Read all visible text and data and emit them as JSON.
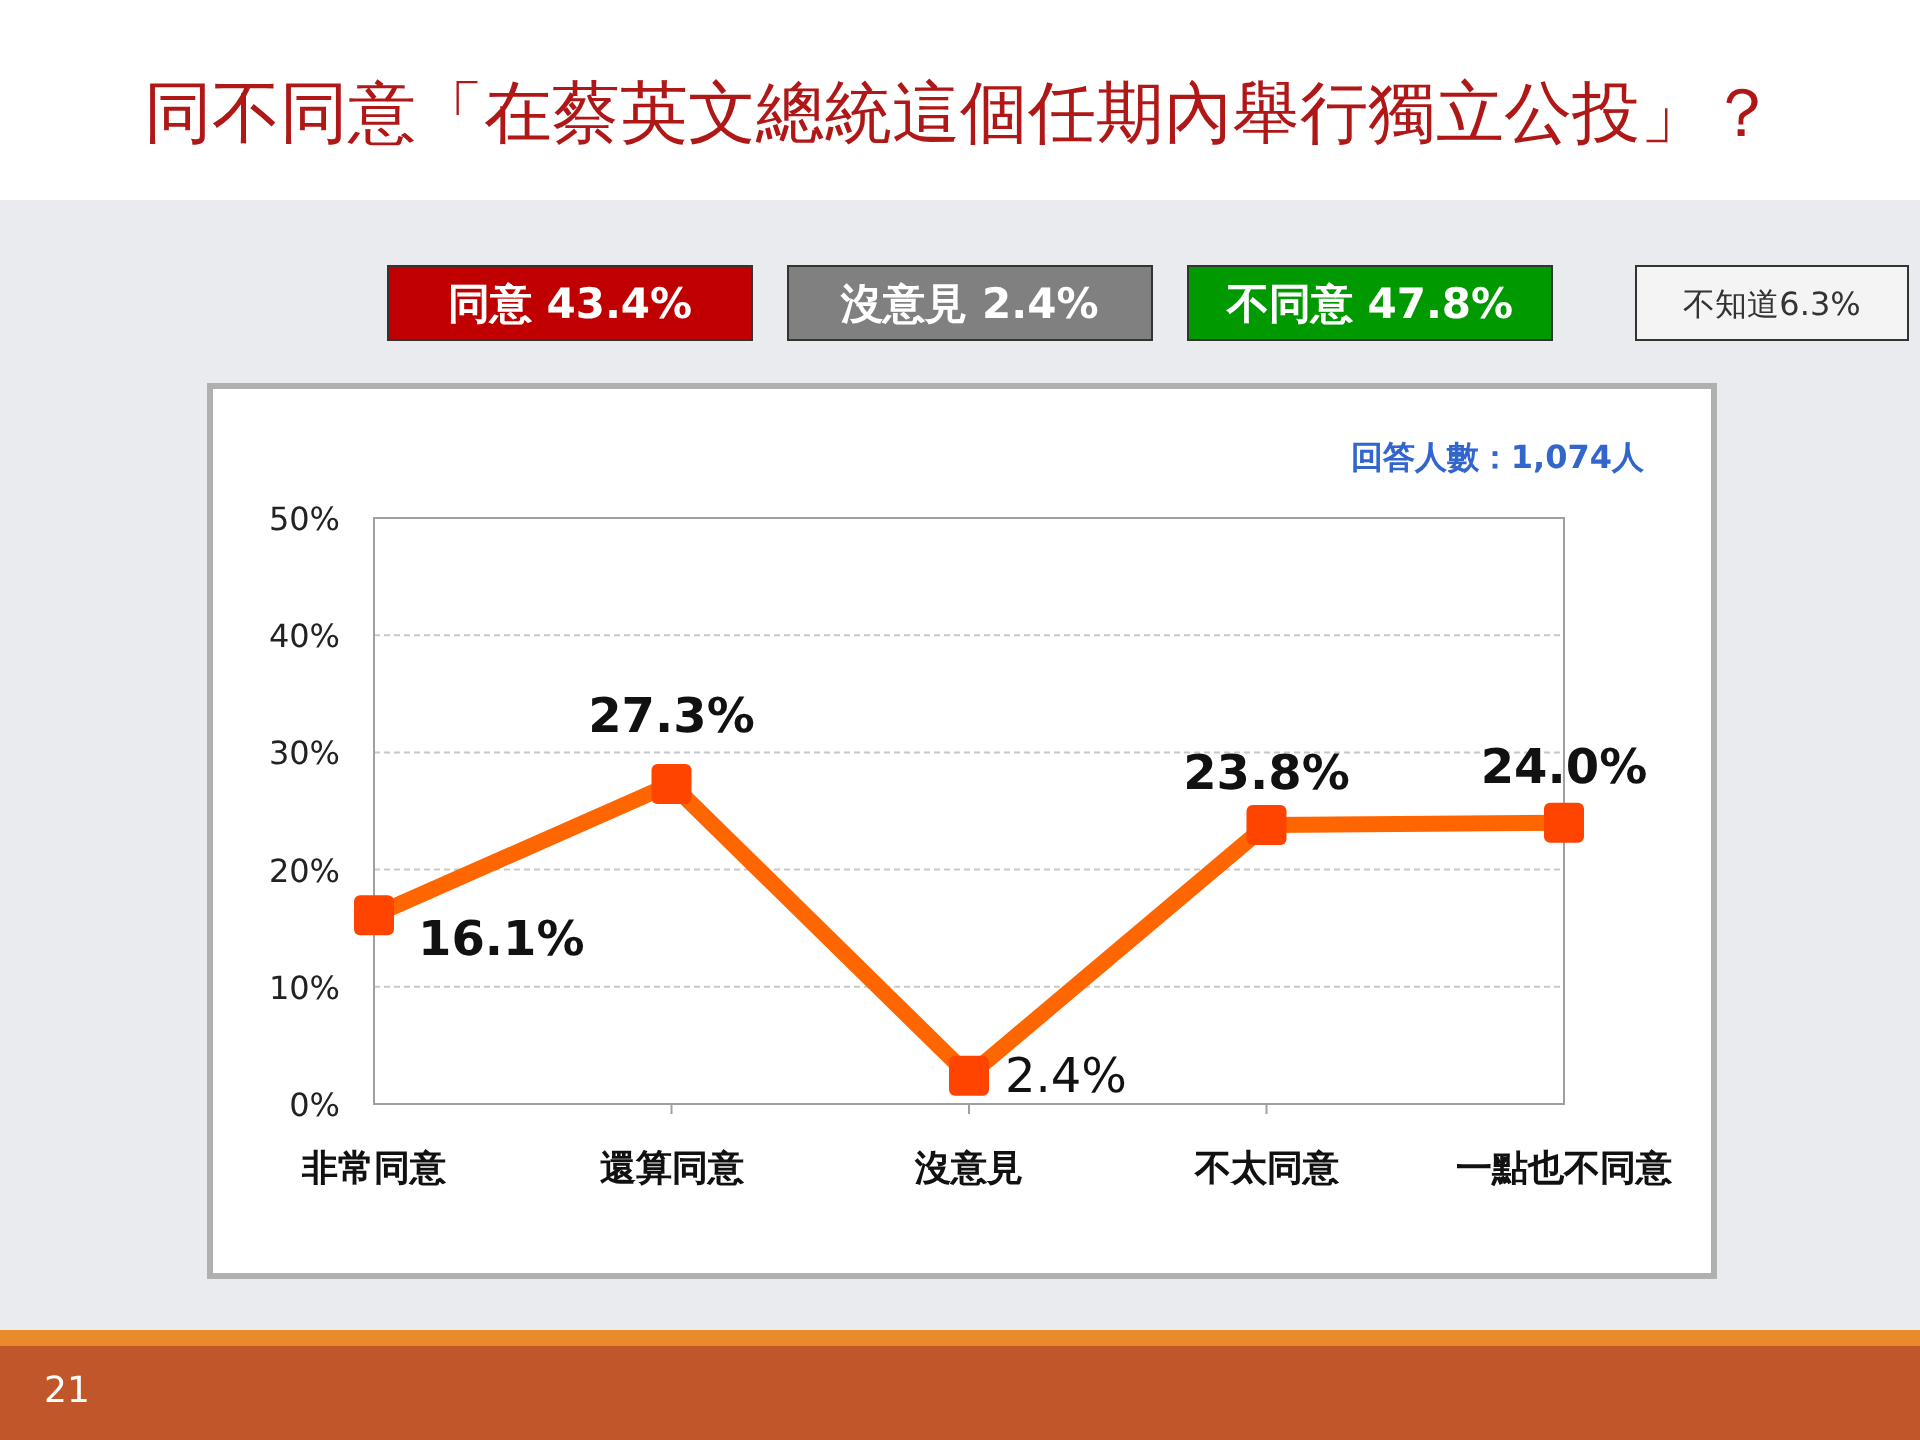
{
  "chart_data": {
    "type": "line",
    "title": "同不同意「在蔡英文總統這個任期內舉行獨立公投」？",
    "categories": [
      "非常同意",
      "還算同意",
      "沒意見",
      "不太同意",
      "一點也不同意"
    ],
    "series": [
      {
        "color": "#ff6600",
        "values": [
          16.1,
          27.3,
          2.4,
          23.8,
          24.0
        ],
        "value_labels": [
          "16.1%",
          "27.3%",
          "2.4%",
          "23.8%",
          "24.0%"
        ]
      }
    ],
    "ylim": [
      0,
      50
    ],
    "yticks": [
      {
        "value": 0,
        "label": "0%"
      },
      {
        "value": 10,
        "label": "10%"
      },
      {
        "value": 20,
        "label": "20%"
      },
      {
        "value": 30,
        "label": "30%"
      },
      {
        "value": 40,
        "label": "40%"
      },
      {
        "value": 50,
        "label": "50%"
      }
    ],
    "grid": "y",
    "marker": "square",
    "line_style": "solid",
    "annotations": [
      "同意 43.4%",
      "沒意見 2.4%",
      "不同意 47.8%",
      "不知道6.3%",
      "回答人數：1,074人",
      "21"
    ]
  }
}
